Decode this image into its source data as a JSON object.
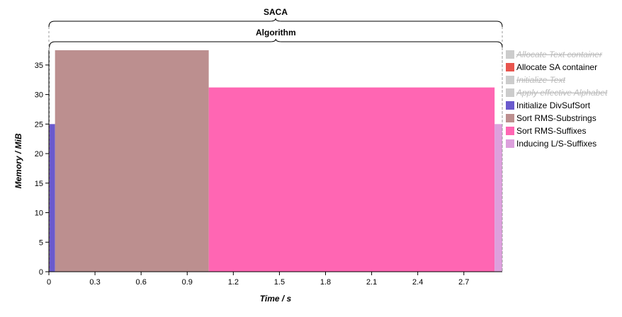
{
  "chart_data": {
    "type": "area",
    "xlabel": "Time / s",
    "ylabel": "Memory / MiB",
    "xlim": [
      0,
      2.95
    ],
    "ylim": [
      0,
      37.5
    ],
    "x_ticks": [
      "0",
      "0.3",
      "0.6",
      "0.9",
      "1.2",
      "1.5",
      "1.8",
      "2.1",
      "2.4",
      "2.7"
    ],
    "y_ticks": [
      "0",
      "5",
      "10",
      "15",
      "20",
      "25",
      "30",
      "35"
    ],
    "phases": [
      {
        "name": "Allocate SA container",
        "x_start": 0.0,
        "x_end": 0.003,
        "memory": 25.0,
        "color": "#e8554e"
      },
      {
        "name": "Initialize DivSufSort",
        "x_start": 0.003,
        "x_end": 0.04,
        "memory": 25.0,
        "color": "#6a5acd"
      },
      {
        "name": "Sort RMS-Substrings",
        "x_start": 0.04,
        "x_end": 1.04,
        "memory": 37.5,
        "color": "#bc8f8f"
      },
      {
        "name": "Sort RMS-Suffixes",
        "x_start": 1.04,
        "x_end": 2.9,
        "memory": 31.2,
        "color": "#ff66b3"
      },
      {
        "name": "Inducing L/S-Suffixes",
        "x_start": 2.9,
        "x_end": 2.95,
        "memory": 25.0,
        "color": "#dda0dd"
      }
    ],
    "braces": [
      {
        "label": "SACA",
        "x_start": 0.0,
        "x_end": 2.95
      },
      {
        "label": "Algorithm",
        "x_start": 0.003,
        "x_end": 2.95
      }
    ],
    "legend_position": "right",
    "legend": [
      {
        "label": "Allocate Text container",
        "color": "#cccccc",
        "disabled": true
      },
      {
        "label": "Allocate SA container",
        "color": "#e8554e",
        "disabled": false
      },
      {
        "label": "Initialize Text",
        "color": "#cccccc",
        "disabled": true
      },
      {
        "label": "Apply effective Alphabet",
        "color": "#cccccc",
        "disabled": true
      },
      {
        "label": "Initialize DivSufSort",
        "color": "#6a5acd",
        "disabled": false
      },
      {
        "label": "Sort RMS-Substrings",
        "color": "#bc8f8f",
        "disabled": false
      },
      {
        "label": "Sort RMS-Suffixes",
        "color": "#ff66b3",
        "disabled": false
      },
      {
        "label": "Inducing L/S-Suffixes",
        "color": "#dda0dd",
        "disabled": false
      }
    ]
  }
}
